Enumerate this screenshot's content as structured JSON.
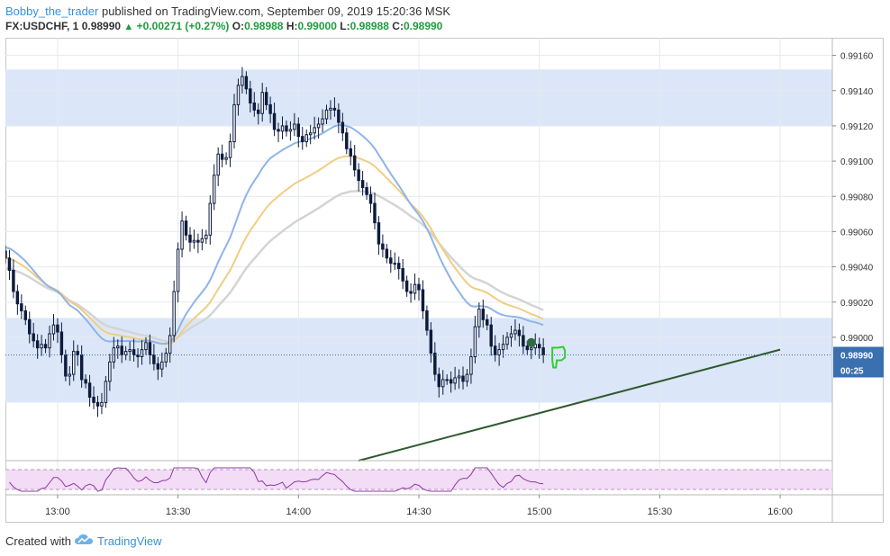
{
  "header": {
    "author": "Bobby_the_trader",
    "published_text": " published on TradingView.com, September 09, 2019 15:20:36 MSK",
    "symbol": "FX:USDCHF, 1",
    "last": "0.98990",
    "change": "+0.00271 (+0.27%)",
    "o_label": "O:",
    "o_value": "0.98988",
    "h_label": "H:",
    "h_value": "0.99000",
    "l_label": "L:",
    "l_value": "0.98988",
    "c_label": "C:",
    "c_value": "0.98990"
  },
  "footer": {
    "created_with": "Created with",
    "brand": "TradingView"
  },
  "colors": {
    "up_arrow": "#1b9e3e",
    "candle": "#0e1b3d",
    "zone": "#dbe7f8",
    "ma_blue": "#8fb4e8",
    "ma_orange": "#f1cd82",
    "ma_gray": "#d4d4d4",
    "trendline": "#2f5a2f",
    "rsi_line": "#8b3aa0",
    "rsi_band": "#f3dcf6",
    "thumb": "#33cc33"
  },
  "chart_data": {
    "type": "candlestick",
    "symbol": "FX:USDCHF",
    "interval": "1",
    "x_tick_labels": [
      "13:00",
      "13:30",
      "14:00",
      "14:30",
      "15:00",
      "15:30",
      "16:00"
    ],
    "y_tick_labels": [
      "0.99160",
      "0.99140",
      "0.99120",
      "0.99100",
      "0.99080",
      "0.99060",
      "0.99040",
      "0.99020",
      "0.99000"
    ],
    "y_range": [
      0.9893,
      0.9917
    ],
    "last_price_label": "0.98990",
    "last_price": 0.9899,
    "countdown_label": "00:25",
    "resistance_zone": [
      0.9912,
      0.99152
    ],
    "support_zone": [
      0.98963,
      0.99011
    ],
    "trendline": [
      [
        "14:15",
        0.9893
      ],
      [
        "16:00",
        0.98993
      ]
    ],
    "time_start": "12:47",
    "time_end": "16:13",
    "candles_start": "12:47",
    "candles_interval_minutes": 1,
    "closes": [
      0.99045,
      0.99038,
      0.99026,
      0.99019,
      0.99015,
      0.9901,
      0.99002,
      0.98998,
      0.98994,
      0.98996,
      0.98994,
      0.99002,
      0.99007,
      0.99003,
      0.9899,
      0.98978,
      0.98979,
      0.98992,
      0.9899,
      0.98976,
      0.98974,
      0.98966,
      0.98963,
      0.98961,
      0.98963,
      0.98975,
      0.98986,
      0.98994,
      0.98995,
      0.9899,
      0.98992,
      0.98993,
      0.9899,
      0.98989,
      0.98993,
      0.98997,
      0.9899,
      0.98985,
      0.98982,
      0.98986,
      0.98991,
      0.99001,
      0.99026,
      0.9905,
      0.99066,
      0.99058,
      0.99054,
      0.99055,
      0.99054,
      0.99056,
      0.99058,
      0.99076,
      0.99092,
      0.99104,
      0.99101,
      0.99102,
      0.99111,
      0.99132,
      0.99143,
      0.99148,
      0.99141,
      0.99133,
      0.99129,
      0.99127,
      0.99139,
      0.99132,
      0.99127,
      0.99118,
      0.99117,
      0.9912,
      0.99117,
      0.99118,
      0.99121,
      0.99114,
      0.99111,
      0.99115,
      0.99116,
      0.99119,
      0.99121,
      0.99124,
      0.99129,
      0.9913,
      0.99129,
      0.99122,
      0.99116,
      0.99107,
      0.99103,
      0.99095,
      0.99089,
      0.99085,
      0.99081,
      0.99076,
      0.99065,
      0.99053,
      0.9905,
      0.99045,
      0.99042,
      0.99042,
      0.99039,
      0.99032,
      0.99026,
      0.99025,
      0.9903,
      0.99027,
      0.99015,
      0.99004,
      0.98991,
      0.98979,
      0.98972,
      0.98976,
      0.98976,
      0.98974,
      0.98977,
      0.98978,
      0.98975,
      0.98979,
      0.98989,
      0.99006,
      0.99016,
      0.9901,
      0.99007,
      0.98995,
      0.9899,
      0.98993,
      0.98996,
      0.99,
      0.99002,
      0.99004,
      0.99001,
      0.98995,
      0.98993,
      0.98994,
      0.98996,
      0.98994,
      0.9899
    ]
  }
}
